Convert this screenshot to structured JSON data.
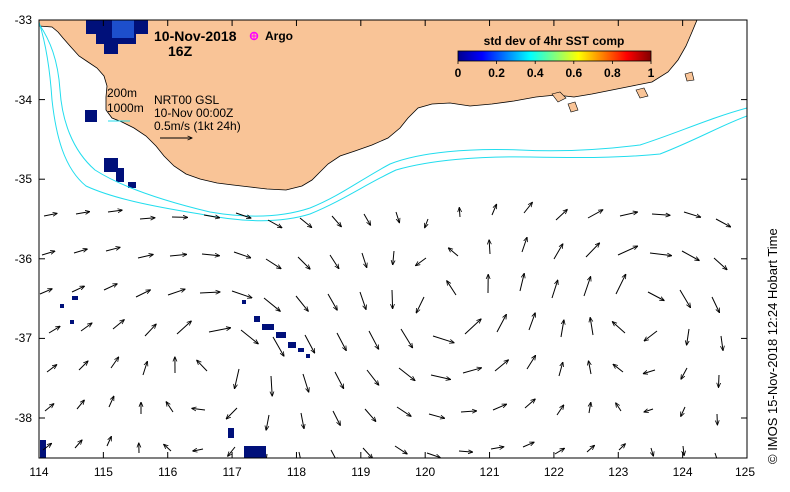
{
  "map": {
    "date_label": "10-Nov-2018",
    "hour_label": "16Z",
    "argo_label": "Argo",
    "bathy_200_label": "200m",
    "bathy_1000_label": "1000m",
    "product_label": "NRT00 GSL",
    "product_time_label": "10-Nov 00:00Z",
    "vector_scale_label": "0.5m/s (1kt 24h)",
    "credit": "© IMOS 15-Nov-2018 12:24 Hobart Time",
    "colors": {
      "land": "#F9C497",
      "bathymetry": "#22DDEE",
      "argo_marker": "#FF00FF",
      "low_std": "#00107A"
    }
  },
  "colorbar": {
    "title": "std dev of 4hr SST comp",
    "ticks": [
      "0",
      "0.2",
      "0.4",
      "0.6",
      "0.8",
      "1"
    ],
    "colormap": "jet"
  },
  "axes": {
    "x_ticks": [
      "114",
      "115",
      "116",
      "117",
      "118",
      "119",
      "120",
      "121",
      "122",
      "123",
      "124",
      "125"
    ],
    "y_ticks": [
      "-33",
      "-34",
      "-35",
      "-36",
      "-37",
      "-38"
    ],
    "lon_range": [
      114,
      125
    ],
    "lat_range": [
      -38.5,
      -32.9
    ]
  }
}
